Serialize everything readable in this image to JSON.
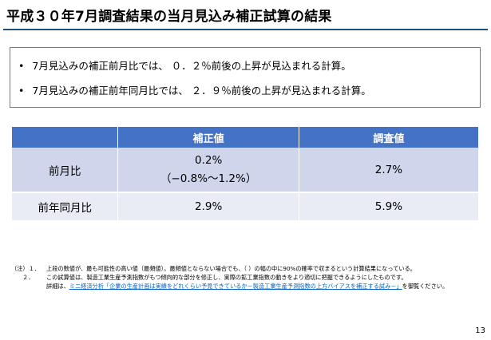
{
  "title": "平成３０年7月調査結果の当月見込み補正試算の結果",
  "summary": {
    "bullet_char": "•",
    "items": [
      "7月見込みの補正前月比では、 ０．２％前後の上昇が見込まれる計算。",
      "7月見込みの補正前年同月比では、 ２．９％前後の上昇が見込まれる計算。"
    ]
  },
  "table": {
    "headers": [
      "",
      "補正値",
      "調査値"
    ],
    "rows": [
      {
        "label": "前月比",
        "hosei": "0.2%",
        "hosei_range": "（−0.8%〜1.2%）",
        "chosa": "2.7%"
      },
      {
        "label": "前年同月比",
        "hosei": "2.9%",
        "chosa": "5.9%"
      }
    ]
  },
  "notes": {
    "note1_prefix": "（注）１．",
    "note1_text": "上段の数値が、最も可能性の高い値（最頻値）。最頻値とならない場合でも、（ ）の幅の中に90%の確率で収まるという計算結果になっている。",
    "note2_prefix": "２．",
    "note2_text": "この試算値は、製造工業生産予測指数がもつ傾向的な部分を修正し、実際の鉱工業指数の動きをより適切に把握できるようにしたものです。",
    "note2_detail_prefix": "詳細は、",
    "note2_link": "ミニ経済分析「企業の生産計画は実績をどれくらい予見できているか－製造工業生産予測指数の上方バイアスを補正する試み－」",
    "note2_detail_suffix": "を御覧ください。"
  },
  "page_number": "13",
  "colors": {
    "header_bg": "#4472c4",
    "row1_bg": "#cfd5ea",
    "row2_bg": "#e9ebf5",
    "link": "#0563c1"
  }
}
